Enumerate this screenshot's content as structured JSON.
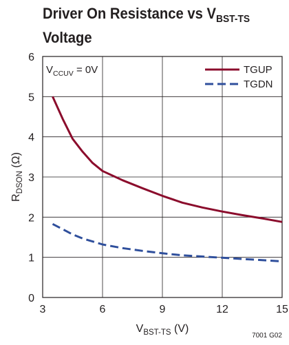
{
  "chart_data": {
    "type": "line",
    "title_main": "Driver On Resistance vs V",
    "title_sub": "BST-TS",
    "title_line2": "Voltage",
    "xlabel_main": "V",
    "xlabel_sub": "BST-TS",
    "xlabel_unit": " (V)",
    "ylabel_main": "R",
    "ylabel_sub": "DSON",
    "ylabel_unit": " (Ω)",
    "xlim": [
      3,
      15
    ],
    "ylim": [
      0,
      6
    ],
    "xticks": [
      "3",
      "6",
      "9",
      "12",
      "15"
    ],
    "yticks": [
      "0",
      "1",
      "2",
      "3",
      "4",
      "5",
      "6"
    ],
    "grid": true,
    "legend_position": "top-right",
    "annotation_main": "V",
    "annotation_sub": "CCUV",
    "annotation_rest": " = 0V",
    "series": [
      {
        "name": "TGUP",
        "color": "#8b0c2c",
        "dash": "solid",
        "x": [
          3.5,
          4,
          4.5,
          5,
          5.5,
          6,
          7,
          8,
          9,
          10,
          11,
          12,
          13,
          14,
          15
        ],
        "y": [
          5.0,
          4.45,
          3.95,
          3.63,
          3.35,
          3.15,
          2.92,
          2.72,
          2.53,
          2.36,
          2.24,
          2.14,
          2.05,
          1.97,
          1.88
        ]
      },
      {
        "name": "TGDN",
        "color": "#2f4f9c",
        "dash": "dashed",
        "x": [
          3.5,
          4,
          4.5,
          5,
          6,
          7,
          8,
          9,
          10,
          11,
          12,
          13,
          14,
          15
        ],
        "y": [
          1.83,
          1.7,
          1.57,
          1.47,
          1.32,
          1.23,
          1.16,
          1.1,
          1.05,
          1.02,
          0.99,
          0.96,
          0.93,
          0.9
        ]
      }
    ]
  },
  "figure_id": "7001 G02"
}
